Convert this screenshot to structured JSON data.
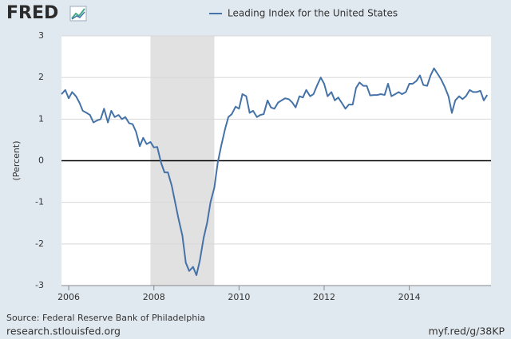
{
  "logo": "FRED",
  "footer": {
    "source": "Source: Federal Reserve Bank of Philadelphia",
    "site": "research.stlouisfed.org",
    "short_link": "myf.red/g/38KP"
  },
  "chart_data": {
    "type": "line",
    "y_label": "(Percent)",
    "xlim": [
      2005.83,
      2015.92
    ],
    "xticks": [
      2006,
      2008,
      2010,
      2012,
      2014
    ],
    "ylim": [
      -3,
      3
    ],
    "yticks": [
      -3,
      -2,
      -1,
      0,
      1,
      2,
      3
    ],
    "grid": true,
    "shading": [
      [
        2007.92,
        2009.42
      ]
    ],
    "shading_color": "#e1e1e1",
    "x": [
      2005.83,
      2005.92,
      2006.0,
      2006.08,
      2006.17,
      2006.25,
      2006.33,
      2006.42,
      2006.5,
      2006.58,
      2006.67,
      2006.75,
      2006.83,
      2006.92,
      2007.0,
      2007.08,
      2007.17,
      2007.25,
      2007.33,
      2007.42,
      2007.5,
      2007.58,
      2007.67,
      2007.75,
      2007.83,
      2007.92,
      2008.0,
      2008.08,
      2008.17,
      2008.25,
      2008.33,
      2008.42,
      2008.5,
      2008.58,
      2008.67,
      2008.75,
      2008.83,
      2008.92,
      2009.0,
      2009.08,
      2009.17,
      2009.25,
      2009.33,
      2009.42,
      2009.5,
      2009.58,
      2009.67,
      2009.75,
      2009.83,
      2009.92,
      2010.0,
      2010.08,
      2010.17,
      2010.25,
      2010.33,
      2010.42,
      2010.5,
      2010.58,
      2010.67,
      2010.75,
      2010.83,
      2010.92,
      2011.0,
      2011.08,
      2011.17,
      2011.25,
      2011.33,
      2011.42,
      2011.5,
      2011.58,
      2011.67,
      2011.75,
      2011.83,
      2011.92,
      2012.0,
      2012.08,
      2012.17,
      2012.25,
      2012.33,
      2012.42,
      2012.5,
      2012.58,
      2012.67,
      2012.75,
      2012.83,
      2012.92,
      2013.0,
      2013.08,
      2013.17,
      2013.25,
      2013.33,
      2013.42,
      2013.5,
      2013.58,
      2013.67,
      2013.75,
      2013.83,
      2013.92,
      2014.0,
      2014.08,
      2014.17,
      2014.25,
      2014.33,
      2014.42,
      2014.5,
      2014.58,
      2014.67,
      2014.75,
      2014.83,
      2014.92,
      2015.0,
      2015.08,
      2015.17,
      2015.25,
      2015.33,
      2015.42,
      2015.5,
      2015.58,
      2015.67,
      2015.75,
      2015.83
    ],
    "series": [
      {
        "name": "Leading Index for the United States",
        "color": "#4572a7",
        "values": [
          1.6,
          1.7,
          1.5,
          1.65,
          1.55,
          1.4,
          1.2,
          1.15,
          1.1,
          0.92,
          0.97,
          1.0,
          1.25,
          0.92,
          1.2,
          1.05,
          1.1,
          1.0,
          1.05,
          0.9,
          0.88,
          0.7,
          0.35,
          0.55,
          0.4,
          0.45,
          0.32,
          0.33,
          -0.05,
          -0.28,
          -0.28,
          -0.6,
          -1.0,
          -1.4,
          -1.8,
          -2.45,
          -2.65,
          -2.55,
          -2.75,
          -2.4,
          -1.85,
          -1.5,
          -1.0,
          -0.65,
          -0.05,
          0.35,
          0.75,
          1.05,
          1.12,
          1.3,
          1.25,
          1.6,
          1.55,
          1.15,
          1.2,
          1.05,
          1.1,
          1.12,
          1.45,
          1.28,
          1.25,
          1.4,
          1.45,
          1.5,
          1.48,
          1.4,
          1.28,
          1.55,
          1.52,
          1.7,
          1.55,
          1.6,
          1.8,
          2.0,
          1.85,
          1.55,
          1.65,
          1.45,
          1.52,
          1.38,
          1.25,
          1.35,
          1.35,
          1.75,
          1.88,
          1.8,
          1.8,
          1.57,
          1.58,
          1.58,
          1.6,
          1.58,
          1.85,
          1.55,
          1.6,
          1.65,
          1.6,
          1.65,
          1.85,
          1.85,
          1.92,
          2.05,
          1.82,
          1.8,
          2.05,
          2.22,
          2.08,
          1.95,
          1.78,
          1.55,
          1.15,
          1.45,
          1.55,
          1.48,
          1.55,
          1.7,
          1.65,
          1.65,
          1.68,
          1.45,
          1.58
        ]
      }
    ]
  }
}
